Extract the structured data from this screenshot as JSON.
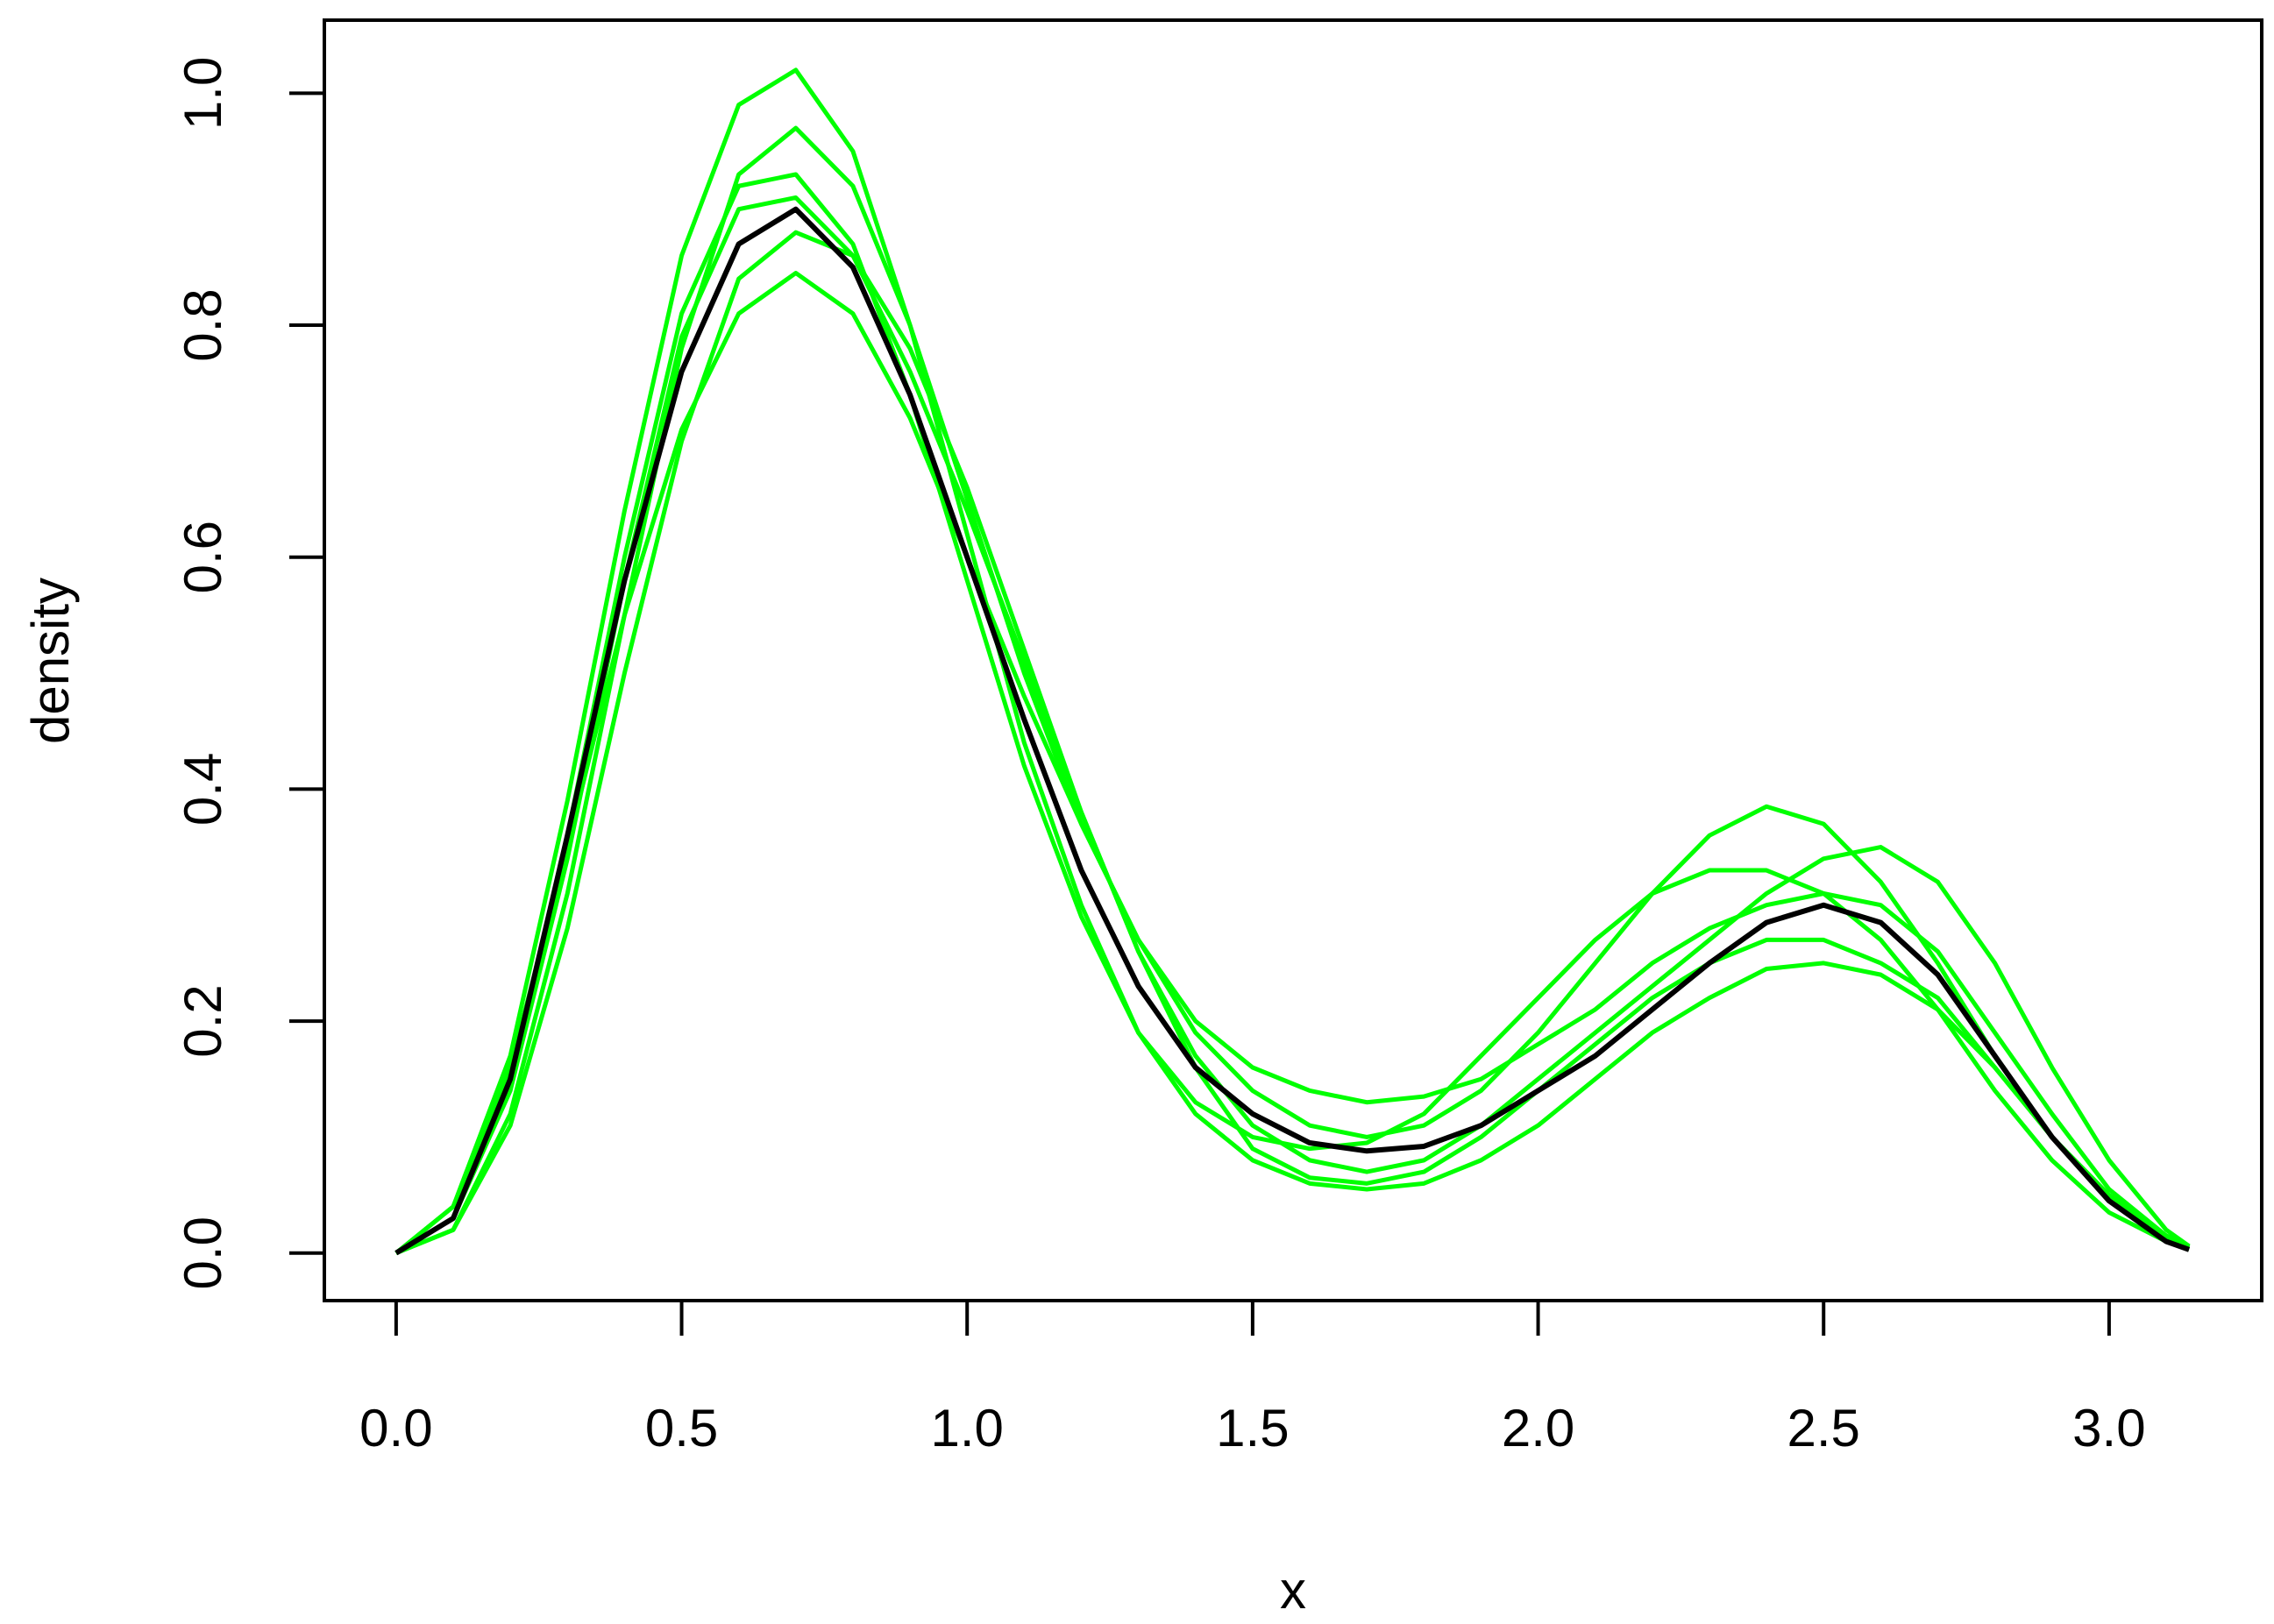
{
  "chart_data": {
    "type": "line",
    "xlabel": "x",
    "ylabel": "density",
    "x": [
      0,
      0.1,
      0.2,
      0.3,
      0.4,
      0.5,
      0.6,
      0.7,
      0.8,
      0.9,
      1.0,
      1.1,
      1.2,
      1.3,
      1.4,
      1.5,
      1.6,
      1.7,
      1.8,
      1.9,
      2.0,
      2.1,
      2.2,
      2.3,
      2.4,
      2.5,
      2.6,
      2.7,
      2.8,
      2.9,
      3.0,
      3.1,
      3.14
    ],
    "series": [
      {
        "color": "#00ff00",
        "values": [
          0,
          0.04,
          0.17,
          0.39,
          0.64,
          0.86,
          0.99,
          1.02,
          0.95,
          0.8,
          0.62,
          0.44,
          0.3,
          0.19,
          0.12,
          0.08,
          0.06,
          0.055,
          0.06,
          0.08,
          0.11,
          0.15,
          0.19,
          0.22,
          0.245,
          0.25,
          0.24,
          0.21,
          0.16,
          0.1,
          0.05,
          0.015,
          0.005
        ]
      },
      {
        "color": "#00ff00",
        "values": [
          0,
          0.04,
          0.16,
          0.35,
          0.55,
          0.71,
          0.81,
          0.845,
          0.81,
          0.72,
          0.6,
          0.48,
          0.37,
          0.27,
          0.19,
          0.14,
          0.11,
          0.1,
          0.11,
          0.14,
          0.19,
          0.25,
          0.31,
          0.36,
          0.385,
          0.37,
          0.32,
          0.25,
          0.17,
          0.1,
          0.045,
          0.012,
          0.004
        ]
      },
      {
        "color": "#00ff00",
        "values": [
          0,
          0.02,
          0.12,
          0.31,
          0.55,
          0.78,
          0.93,
          0.97,
          0.92,
          0.8,
          0.65,
          0.5,
          0.37,
          0.27,
          0.2,
          0.16,
          0.14,
          0.13,
          0.135,
          0.15,
          0.18,
          0.21,
          0.25,
          0.28,
          0.3,
          0.31,
          0.3,
          0.26,
          0.19,
          0.12,
          0.055,
          0.015,
          0.005
        ]
      },
      {
        "color": "#00ff00",
        "values": [
          0,
          0.02,
          0.11,
          0.28,
          0.5,
          0.7,
          0.84,
          0.88,
          0.86,
          0.78,
          0.66,
          0.52,
          0.38,
          0.26,
          0.17,
          0.11,
          0.08,
          0.07,
          0.08,
          0.11,
          0.15,
          0.19,
          0.23,
          0.27,
          0.31,
          0.34,
          0.35,
          0.32,
          0.25,
          0.16,
          0.08,
          0.02,
          0.006
        ]
      },
      {
        "color": "#00ff00",
        "values": [
          0,
          0.03,
          0.15,
          0.36,
          0.6,
          0.81,
          0.92,
          0.93,
          0.87,
          0.74,
          0.58,
          0.42,
          0.29,
          0.19,
          0.13,
          0.1,
          0.09,
          0.095,
          0.12,
          0.17,
          0.22,
          0.27,
          0.31,
          0.33,
          0.33,
          0.31,
          0.27,
          0.21,
          0.14,
          0.08,
          0.035,
          0.01,
          0.003
        ]
      },
      {
        "color": "#00ff00",
        "values": [
          0,
          0.03,
          0.14,
          0.34,
          0.58,
          0.79,
          0.9,
          0.91,
          0.86,
          0.76,
          0.64,
          0.51,
          0.38,
          0.26,
          0.16,
          0.09,
          0.065,
          0.06,
          0.07,
          0.1,
          0.14,
          0.18,
          0.22,
          0.25,
          0.27,
          0.27,
          0.25,
          0.22,
          0.16,
          0.1,
          0.05,
          0.015,
          0.005
        ]
      },
      {
        "color": "#000000",
        "values": [
          0,
          0.03,
          0.15,
          0.36,
          0.58,
          0.76,
          0.87,
          0.9,
          0.85,
          0.74,
          0.6,
          0.46,
          0.33,
          0.23,
          0.16,
          0.12,
          0.095,
          0.088,
          0.092,
          0.11,
          0.14,
          0.17,
          0.21,
          0.25,
          0.285,
          0.3,
          0.285,
          0.24,
          0.17,
          0.1,
          0.045,
          0.01,
          0.003
        ]
      }
    ],
    "xlim": [
      -0.1257,
      3.2673
    ],
    "ylim": [
      -0.041,
      1.063
    ],
    "xticks": [
      {
        "value": 0,
        "label": "0.0"
      },
      0.5,
      {
        "value": 1,
        "label": "1.0"
      },
      1.5,
      {
        "value": 2,
        "label": "2.0"
      },
      2.5,
      {
        "value": 3,
        "label": "3.0"
      }
    ],
    "yticks": [
      {
        "value": 0,
        "label": "0.0"
      },
      0.2,
      0.4,
      0.6,
      0.8,
      {
        "value": 1,
        "label": "1.0"
      }
    ]
  }
}
